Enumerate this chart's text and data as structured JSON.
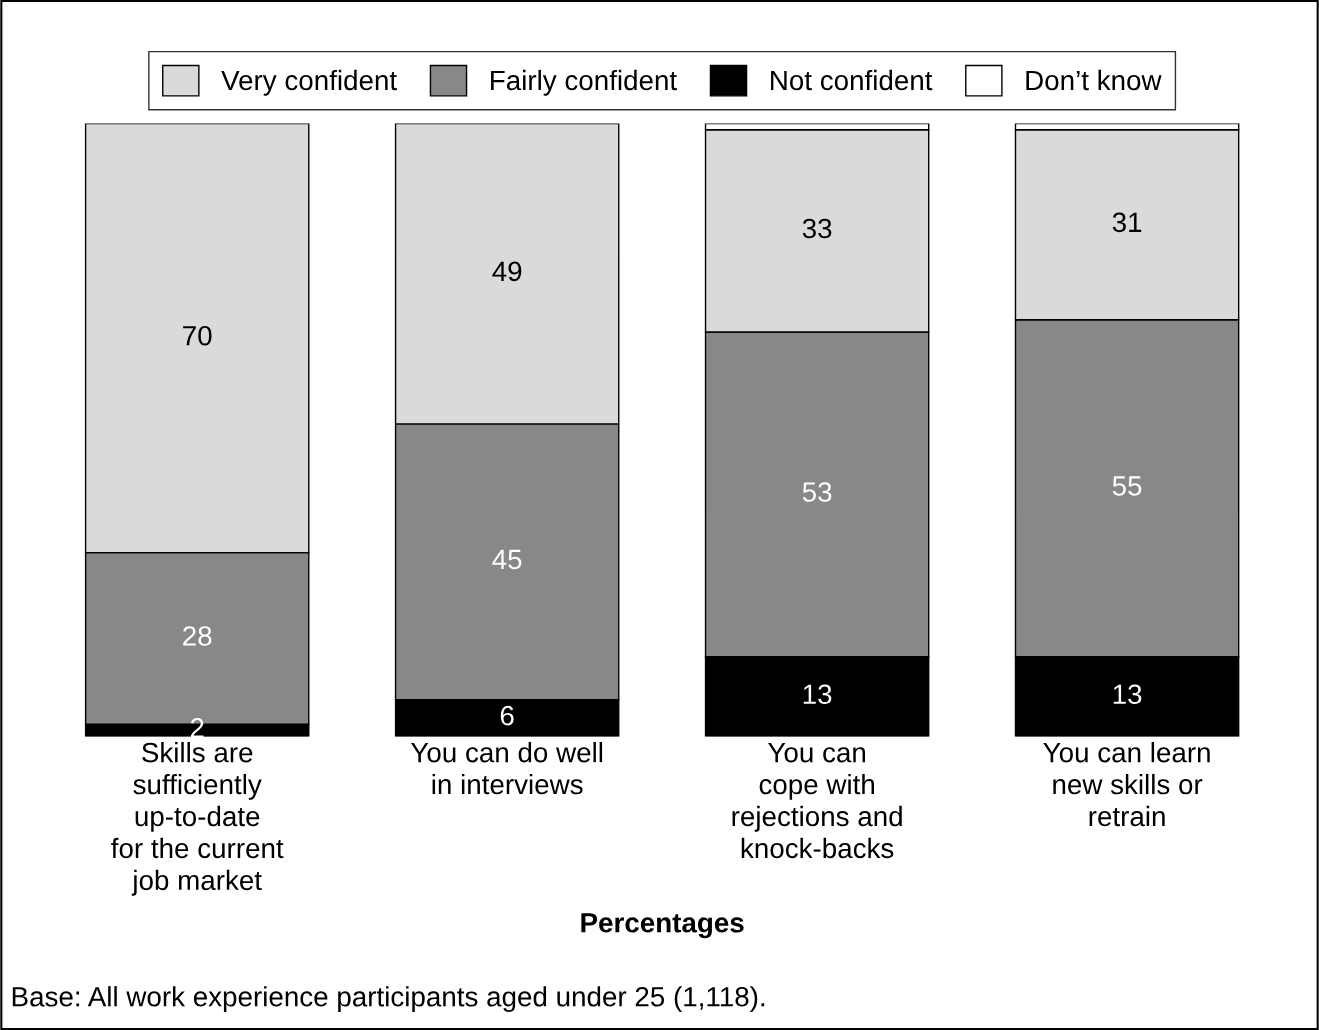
{
  "chart_data": {
    "type": "bar",
    "stacked": true,
    "categories": [
      "Skills are\nsufficiently\nup-to-date\nfor the current\njob market",
      "You can do well\nin interviews",
      "You can\ncope with\nrejections and\nknock-backs",
      "You can learn\nnew skills or\nretrain"
    ],
    "series": [
      {
        "name": "Not confident",
        "color": "#000000",
        "values": [
          2,
          6,
          13,
          13
        ],
        "value_labels": [
          "2",
          "6",
          "13",
          "13"
        ]
      },
      {
        "name": "Fairly confident",
        "color": "#87888a",
        "values": [
          28,
          45,
          53,
          55
        ],
        "value_labels": [
          "28",
          "45",
          "53",
          "55"
        ]
      },
      {
        "name": "Very confident",
        "color": "#d9dadc",
        "values": [
          70,
          49,
          33,
          31
        ],
        "value_labels": [
          "70",
          "49",
          "33",
          "31"
        ]
      },
      {
        "name": "Don’t know",
        "color": "#ffffff",
        "values": [
          null,
          null,
          1,
          1
        ],
        "value_labels": [
          null,
          null,
          null,
          null
        ]
      }
    ],
    "legend": "top",
    "grid": false,
    "xlabel": "Percentages",
    "annotations": [
      "Base: All work experience participants aged under 25 (1,118)."
    ]
  }
}
